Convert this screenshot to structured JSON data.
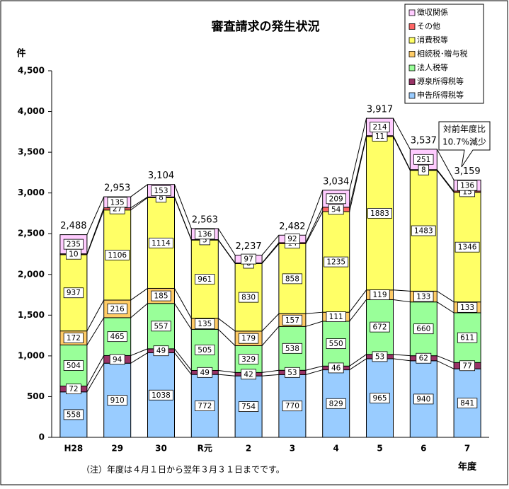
{
  "chart_data": {
    "type": "stacked_bar",
    "title": "審査請求の発生状況",
    "y_label": "件",
    "x_label": "年度",
    "note": "（注）年度は４月１日から翌年３月３１日までです。",
    "annotation": [
      "対前年度比",
      "10.7%減少"
    ],
    "categories": [
      "H28",
      "29",
      "30",
      "R元",
      "2",
      "3",
      "4",
      "5",
      "6",
      "7"
    ],
    "series": [
      {
        "name": "申告所得税等",
        "color": "#99ccff",
        "values": [
          558,
          910,
          1038,
          772,
          754,
          770,
          829,
          965,
          940,
          841
        ]
      },
      {
        "name": "源泉所得税等",
        "color": "#993366",
        "values": [
          72,
          94,
          49,
          49,
          42,
          53,
          46,
          53,
          62,
          77
        ]
      },
      {
        "name": "法人税等",
        "color": "#99ff99",
        "values": [
          504,
          465,
          557,
          505,
          329,
          538,
          550,
          672,
          660,
          611
        ]
      },
      {
        "name": "相続税･贈与税",
        "color": "#ffcc66",
        "values": [
          172,
          216,
          185,
          135,
          179,
          157,
          111,
          119,
          133,
          133
        ]
      },
      {
        "name": "消費税等",
        "color": "#ffff66",
        "values": [
          937,
          1106,
          1114,
          961,
          830,
          858,
          1235,
          1883,
          1483,
          1346
        ]
      },
      {
        "name": "その他",
        "color": "#ff6666",
        "values": [
          10,
          27,
          8,
          5,
          6,
          14,
          54,
          11,
          8,
          15
        ]
      },
      {
        "name": "徴収関係",
        "color": "#ffccff",
        "values": [
          235,
          135,
          153,
          136,
          97,
          92,
          209,
          214,
          251,
          136
        ]
      }
    ],
    "totals": {
      "values": [
        2488,
        2953,
        3104,
        2563,
        2237,
        2482,
        3034,
        3917,
        3537,
        3159
      ],
      "value_labels": [
        "2,488",
        "2,953",
        "3,104",
        "2,563",
        "2,237",
        "2,482",
        "3,034",
        "3,917",
        "3,537",
        "3,159"
      ]
    },
    "ylim": [
      0,
      4500
    ],
    "yticks": [
      0,
      500,
      {
        "value": 1000,
        "label": "1,000"
      },
      {
        "value": 1500,
        "label": "1,500"
      },
      {
        "value": 2000,
        "label": "2,000"
      },
      {
        "value": 2500,
        "label": "2,500"
      },
      {
        "value": 3000,
        "label": "3,000"
      },
      {
        "value": 3500,
        "label": "3,500"
      },
      {
        "value": 4000,
        "label": "4,000"
      },
      {
        "value": 4500,
        "label": "4,500"
      }
    ],
    "grid": false,
    "legend": "top-right"
  }
}
